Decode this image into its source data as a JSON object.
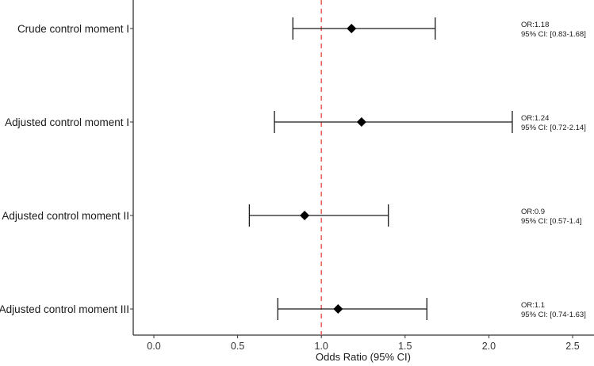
{
  "chart_data": {
    "type": "forest",
    "title": "",
    "xlabel": "Odds Ratio (95% CI)",
    "ylabel": "",
    "xlim": [
      -0.13,
      2.6
    ],
    "xticks": [
      "0.0",
      "0.5",
      "1.0",
      "1.5",
      "2.0",
      "2.5"
    ],
    "xtick_values": [
      0.0,
      0.5,
      1.0,
      1.5,
      2.0,
      2.5
    ],
    "reference_line": {
      "x": 1.0,
      "style": "dashed",
      "color": "#f0685f"
    },
    "grid": false,
    "categories": [
      "Crude control moment I",
      "Adjusted control moment I",
      "Adjusted control moment II",
      "Adjusted control moment III"
    ],
    "series": [
      {
        "name": "Odds Ratio",
        "or": [
          1.18,
          1.24,
          0.9,
          1.1
        ],
        "ci_lower": [
          0.83,
          0.72,
          0.57,
          0.74
        ],
        "ci_upper": [
          1.68,
          2.14,
          1.4,
          1.63
        ]
      }
    ],
    "annotations": [
      {
        "or_label": "OR:1.18",
        "ci_label": "95% CI: [0.83-1.68]"
      },
      {
        "or_label": "OR:1.24",
        "ci_label": "95% CI: [0.72-2.14]"
      },
      {
        "or_label": "OR:0.9",
        "ci_label": "95% CI: [0.57-1.4]"
      },
      {
        "or_label": "OR:1.1",
        "ci_label": "95% CI: [0.74-1.63]"
      }
    ],
    "colors": {
      "point": "#000000",
      "errorbar": "#1a1a1a",
      "axis": "#333333",
      "refline": "#f0685f"
    }
  }
}
